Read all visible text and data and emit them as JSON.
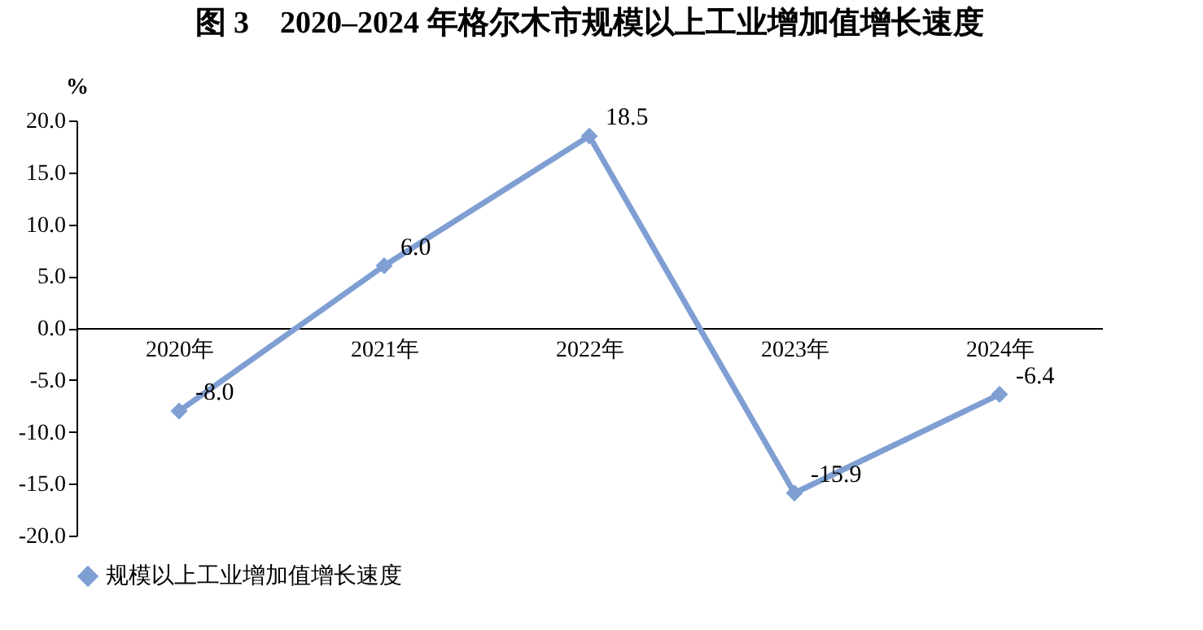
{
  "chart_data": {
    "type": "line",
    "title": "图 3　2020–2024 年格尔木市规模以上工业增加值增长速度",
    "ylabel": "%",
    "categories": [
      "2020年",
      "2021年",
      "2022年",
      "2023年",
      "2024年"
    ],
    "series": [
      {
        "name": "规模以上工业增加值增长速度",
        "color": "#7f9fd3",
        "values": [
          -8.0,
          6.0,
          18.5,
          -15.9,
          -6.4
        ],
        "value_labels": [
          "-8.0",
          "6.0",
          "18.5",
          "-15.9",
          "-6.4"
        ]
      }
    ],
    "ylim": [
      -20,
      20
    ],
    "yticks": [
      {
        "value": -20,
        "label": "-20.0"
      },
      {
        "value": -15,
        "label": "-15.0"
      },
      {
        "value": -10,
        "label": "-10.0"
      },
      {
        "value": -5,
        "label": "-5.0"
      },
      {
        "value": 0,
        "label": "0.0"
      },
      {
        "value": 5,
        "label": "5.0"
      },
      {
        "value": 10,
        "label": "10.0"
      },
      {
        "value": 15,
        "label": "15.0"
      },
      {
        "value": 20,
        "label": "20.0"
      }
    ],
    "marker": "diamond",
    "line_style": "solid",
    "legend": "bottom",
    "grid": false
  }
}
